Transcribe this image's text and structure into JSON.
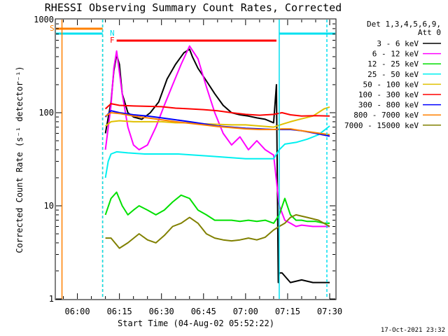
{
  "chart_data": {
    "type": "line",
    "title": "RHESSI Observing Summary Count Rates, Corrected",
    "xlabel": "Start Time (04-Aug-02 05:52:22)",
    "ylabel": "Corrected Count Rate (s⁻¹ detector⁻¹)",
    "y_scale": "log",
    "ylim": [
      1,
      1000
    ],
    "xlim": [
      "05:52:22",
      "07:32:00"
    ],
    "x_ticks": [
      "06:00",
      "06:15",
      "06:30",
      "06:45",
      "07:00",
      "07:15",
      "07:30"
    ],
    "y_ticks": [
      "1",
      "10",
      "100",
      "1000"
    ],
    "legend_header": [
      "Det 1,3,4,5,6,9,",
      "Att 0"
    ],
    "legend_position": "right",
    "timestamp": "17-Oct-2021 23:32",
    "flag_labels": {
      "saa": "S",
      "night": "N",
      "flare": "F"
    },
    "flags": {
      "saa": {
        "color": "#ff8000",
        "intervals": [
          [
            "05:52:22",
            "06:09:00"
          ]
        ]
      },
      "night": {
        "color": "#00e0f0",
        "intervals": [
          [
            "05:52:22",
            "06:09:00"
          ],
          [
            "07:12:00",
            "07:32:00"
          ]
        ]
      },
      "flare": {
        "color": "#ff0000",
        "intervals": [
          [
            "06:14:00",
            "07:11:00"
          ]
        ]
      }
    },
    "vlines": [
      {
        "time": "05:54:30",
        "color": "#ff8000",
        "style": "solid"
      },
      {
        "time": "06:09:00",
        "color": "#ff8000",
        "style": "dashed"
      },
      {
        "time": "06:09:00",
        "color": "#00e0f0",
        "style": "dashed"
      },
      {
        "time": "07:12:00",
        "color": "#00e0f0",
        "style": "solid"
      },
      {
        "time": "07:29:00",
        "color": "#00e0f0",
        "style": "dashed"
      }
    ],
    "series": [
      {
        "name": "3 - 6 keV",
        "color": "#000000",
        "x": [
          "06:10",
          "06:12",
          "06:13",
          "06:14",
          "06:15",
          "06:16",
          "06:18",
          "06:20",
          "06:23",
          "06:26",
          "06:29",
          "06:32",
          "06:35",
          "06:38",
          "06:40",
          "06:41",
          "06:43",
          "06:46",
          "06:49",
          "06:52",
          "06:55",
          "06:58",
          "07:01",
          "07:04",
          "07:07",
          "07:10",
          "07:11",
          "07:11:40",
          "07:12",
          "07:13",
          "07:16",
          "07:20",
          "07:24",
          "07:28",
          "07:30"
        ],
        "y": [
          60,
          130,
          280,
          420,
          330,
          160,
          100,
          90,
          85,
          100,
          130,
          230,
          330,
          440,
          480,
          400,
          300,
          220,
          160,
          120,
          100,
          95,
          92,
          88,
          85,
          78,
          200,
          1.5,
          1.9,
          1.9,
          1.5,
          1.6,
          1.5,
          1.5,
          1.5
        ]
      },
      {
        "name": "6 - 12 keV",
        "color": "#ff00ff",
        "x": [
          "06:10",
          "06:12",
          "06:13",
          "06:14",
          "06:16",
          "06:18",
          "06:20",
          "06:22",
          "06:25",
          "06:28",
          "06:31",
          "06:34",
          "06:37",
          "06:40",
          "06:43",
          "06:46",
          "06:49",
          "06:52",
          "06:55",
          "06:58",
          "07:01",
          "07:04",
          "07:07",
          "07:10",
          "07:12",
          "07:14",
          "07:16",
          "07:18",
          "07:20",
          "07:24",
          "07:28",
          "07:30"
        ],
        "y": [
          40,
          120,
          300,
          460,
          160,
          70,
          45,
          40,
          45,
          70,
          120,
          200,
          330,
          520,
          380,
          190,
          100,
          60,
          45,
          55,
          40,
          50,
          40,
          35,
          10,
          7,
          6.5,
          6,
          6.2,
          6,
          6,
          6
        ]
      },
      {
        "name": "12 - 25 keV",
        "color": "#00e000",
        "x": [
          "06:10",
          "06:12",
          "06:14",
          "06:16",
          "06:18",
          "06:20",
          "06:22",
          "06:25",
          "06:28",
          "06:31",
          "06:34",
          "06:37",
          "06:40",
          "06:43",
          "06:46",
          "06:49",
          "06:52",
          "06:55",
          "06:58",
          "07:01",
          "07:04",
          "07:07",
          "07:10",
          "07:12",
          "07:14",
          "07:16",
          "07:18",
          "07:20",
          "07:22",
          "07:25",
          "07:28",
          "07:30"
        ],
        "y": [
          8,
          12,
          14,
          10,
          8,
          9,
          10,
          9,
          8,
          9,
          11,
          13,
          12,
          9,
          8,
          7,
          7,
          7,
          6.8,
          7,
          6.8,
          7,
          6.5,
          8,
          12,
          8,
          7,
          7,
          6.8,
          6.8,
          6.5,
          6.5
        ]
      },
      {
        "name": "25 - 50 keV",
        "color": "#00f0f0",
        "x": [
          "06:10",
          "06:11",
          "06:12",
          "06:14",
          "06:18",
          "06:24",
          "06:30",
          "06:36",
          "06:42",
          "06:48",
          "06:54",
          "07:00",
          "07:05",
          "07:10",
          "07:12",
          "07:14",
          "07:18",
          "07:22",
          "07:26",
          "07:30"
        ],
        "y": [
          20,
          30,
          36,
          38,
          37,
          36,
          36,
          36,
          35,
          34,
          33,
          32,
          32,
          32,
          40,
          46,
          48,
          52,
          58,
          72
        ]
      },
      {
        "name": "50 - 100 keV",
        "color": "#e0c000",
        "x": [
          "06:10",
          "06:12",
          "06:15",
          "06:20",
          "06:25",
          "06:30",
          "06:35",
          "06:40",
          "06:45",
          "06:50",
          "06:55",
          "07:00",
          "07:05",
          "07:10",
          "07:13",
          "07:16",
          "07:20",
          "07:24",
          "07:28",
          "07:30"
        ],
        "y": [
          72,
          80,
          82,
          80,
          80,
          80,
          78,
          78,
          76,
          75,
          74,
          74,
          72,
          70,
          75,
          80,
          86,
          92,
          110,
          115
        ]
      },
      {
        "name": "100 - 300 keV",
        "color": "#ff0000",
        "x": [
          "06:10",
          "06:12",
          "06:15",
          "06:20",
          "06:25",
          "06:30",
          "06:35",
          "06:40",
          "06:45",
          "06:50",
          "06:55",
          "07:00",
          "07:05",
          "07:10",
          "07:13",
          "07:16",
          "07:20",
          "07:25",
          "07:30"
        ],
        "y": [
          110,
          125,
          120,
          118,
          117,
          116,
          112,
          110,
          108,
          105,
          100,
          96,
          94,
          96,
          100,
          95,
          92,
          93,
          92
        ]
      },
      {
        "name": "300 - 800 keV",
        "color": "#0000ff",
        "x": [
          "06:10",
          "06:12",
          "06:15",
          "06:20",
          "06:25",
          "06:30",
          "06:35",
          "06:40",
          "06:45",
          "06:50",
          "06:55",
          "07:00",
          "07:05",
          "07:10",
          "07:13",
          "07:16",
          "07:20",
          "07:25",
          "07:30"
        ],
        "y": [
          90,
          105,
          100,
          95,
          92,
          88,
          84,
          80,
          76,
          72,
          70,
          68,
          67,
          66,
          66,
          66,
          64,
          60,
          56
        ]
      },
      {
        "name": "800 - 7000 keV",
        "color": "#ff8000",
        "x": [
          "06:10",
          "06:12",
          "06:15",
          "06:20",
          "06:25",
          "06:30",
          "06:35",
          "06:40",
          "06:45",
          "06:50",
          "06:55",
          "07:00",
          "07:05",
          "07:10",
          "07:13",
          "07:16",
          "07:20",
          "07:25",
          "07:30"
        ],
        "y": [
          92,
          100,
          98,
          92,
          88,
          84,
          80,
          77,
          74,
          71,
          69,
          67,
          66,
          66,
          67,
          67,
          64,
          61,
          58
        ]
      },
      {
        "name": "7000 - 15000 keV",
        "color": "#808000",
        "x": [
          "06:10",
          "06:12",
          "06:15",
          "06:18",
          "06:22",
          "06:25",
          "06:28",
          "06:31",
          "06:34",
          "06:37",
          "06:40",
          "06:43",
          "06:46",
          "06:49",
          "06:52",
          "06:55",
          "06:58",
          "07:01",
          "07:04",
          "07:07",
          "07:10",
          "07:12",
          "07:14",
          "07:16",
          "07:18",
          "07:22",
          "07:26",
          "07:30"
        ],
        "y": [
          4.5,
          4.5,
          3.5,
          4,
          5,
          4.3,
          4,
          4.8,
          6,
          6.5,
          7.5,
          6.5,
          5,
          4.5,
          4.3,
          4.2,
          4.3,
          4.5,
          4.3,
          4.6,
          5.5,
          6,
          6.5,
          7.5,
          8,
          7.5,
          7,
          6
        ]
      }
    ]
  }
}
